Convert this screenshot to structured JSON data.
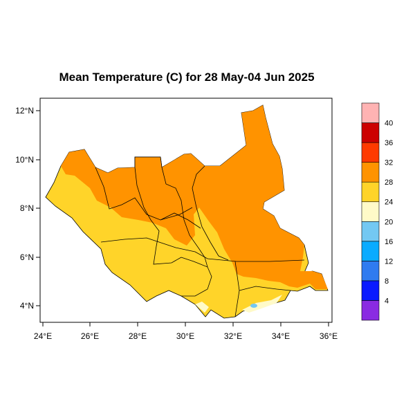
{
  "title": "Mean Temperature (C) for 28 May-04 Jun 2025",
  "map": {
    "x_ticks": [
      "24°E",
      "26°E",
      "28°E",
      "30°E",
      "32°E",
      "34°E",
      "36°E"
    ],
    "y_ticks": [
      "4°N",
      "6°N",
      "8°N",
      "10°N",
      "12°N"
    ]
  },
  "colorbar": {
    "labels": [
      "4",
      "8",
      "12",
      "16",
      "20",
      "24",
      "28",
      "32",
      "36",
      "40"
    ],
    "colors": [
      "#8a2be2",
      "#0a1aff",
      "#2f7bf0",
      "#0aabff",
      "#73c8f2",
      "#fffac8",
      "#ffd429",
      "#ff9300",
      "#ff3a00",
      "#cc0000",
      "#ffb3b3"
    ]
  },
  "region_colors": {
    "orange": "#ff9300",
    "yellow": "#ffd429",
    "pale": "#fffac8",
    "lightblue": "#73c8f2"
  }
}
